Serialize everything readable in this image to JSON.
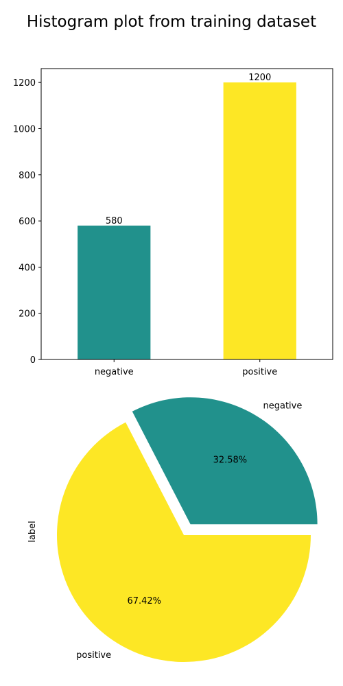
{
  "figure": {
    "title": "Histogram plot from training dataset"
  },
  "chart_data": [
    {
      "type": "bar",
      "categories": [
        "negative",
        "positive"
      ],
      "values": [
        580,
        1200
      ],
      "data_labels": [
        "580",
        "1200"
      ],
      "colors": [
        "#21918c",
        "#fde725"
      ],
      "ylim": [
        0,
        1260
      ],
      "yticks": [
        0,
        200,
        400,
        600,
        800,
        1000,
        1200
      ],
      "grid": false,
      "xlabel": "",
      "ylabel": ""
    },
    {
      "type": "pie",
      "labels": [
        "negative",
        "positive"
      ],
      "values": [
        580,
        1200
      ],
      "percent_labels": [
        "32.58%",
        "67.42%"
      ],
      "colors": [
        "#21918c",
        "#fde725"
      ],
      "explode": [
        0.1,
        0
      ],
      "ylabel": "label"
    }
  ]
}
